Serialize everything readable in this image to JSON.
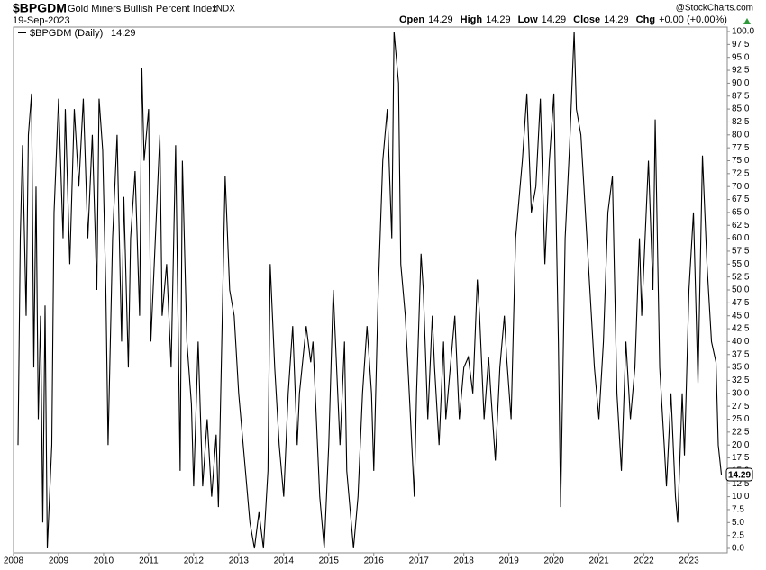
{
  "chart_data": {
    "type": "line",
    "title": "$BPGDM",
    "subtitle": "Gold Miners Bullish Percent Index",
    "exchange": "INDX",
    "date": "19-Sep-2023",
    "watermark": "@StockCharts.com",
    "quote": [
      {
        "label": "Open",
        "value": 14.29
      },
      {
        "label": "High",
        "value": 14.29
      },
      {
        "label": "Low",
        "value": 14.29
      },
      {
        "label": "Close",
        "value": 14.29
      },
      {
        "label": "Chg",
        "value": "+0.00 (+0.00%)"
      }
    ],
    "x": [
      2008.1,
      2008.15,
      2008.2,
      2008.28,
      2008.33,
      2008.4,
      2008.45,
      2008.5,
      2008.55,
      2008.6,
      2008.65,
      2008.7,
      2008.75,
      2008.85,
      2008.9,
      2009.0,
      2009.1,
      2009.15,
      2009.25,
      2009.35,
      2009.45,
      2009.55,
      2009.65,
      2009.75,
      2009.85,
      2009.9,
      2009.98,
      2010.05,
      2010.1,
      2010.2,
      2010.3,
      2010.4,
      2010.45,
      2010.55,
      2010.6,
      2010.7,
      2010.8,
      2010.85,
      2010.9,
      2011.0,
      2011.05,
      2011.15,
      2011.25,
      2011.3,
      2011.4,
      2011.5,
      2011.6,
      2011.7,
      2011.75,
      2011.85,
      2011.95,
      2012.0,
      2012.1,
      2012.2,
      2012.3,
      2012.4,
      2012.5,
      2012.55,
      2012.7,
      2012.8,
      2012.9,
      2013.0,
      2013.1,
      2013.25,
      2013.35,
      2013.45,
      2013.55,
      2013.65,
      2013.7,
      2013.8,
      2013.9,
      2014.0,
      2014.1,
      2014.2,
      2014.3,
      2014.35,
      2014.5,
      2014.6,
      2014.65,
      2014.7,
      2014.8,
      2014.9,
      2015.0,
      2015.1,
      2015.15,
      2015.25,
      2015.35,
      2015.4,
      2015.55,
      2015.65,
      2015.75,
      2015.85,
      2015.95,
      2016.0,
      2016.1,
      2016.2,
      2016.3,
      2016.4,
      2016.45,
      2016.55,
      2016.6,
      2016.7,
      2016.8,
      2016.9,
      2016.95,
      2017.05,
      2017.1,
      2017.2,
      2017.3,
      2017.35,
      2017.45,
      2017.55,
      2017.6,
      2017.7,
      2017.8,
      2017.9,
      2018.0,
      2018.1,
      2018.2,
      2018.3,
      2018.35,
      2018.45,
      2018.55,
      2018.6,
      2018.7,
      2018.8,
      2018.9,
      2018.95,
      2019.05,
      2019.15,
      2019.3,
      2019.4,
      2019.5,
      2019.6,
      2019.7,
      2019.8,
      2019.9,
      2020.0,
      2020.1,
      2020.15,
      2020.25,
      2020.35,
      2020.45,
      2020.5,
      2020.6,
      2020.7,
      2020.8,
      2020.9,
      2021.0,
      2021.1,
      2021.2,
      2021.3,
      2021.4,
      2021.5,
      2021.6,
      2021.7,
      2021.8,
      2021.9,
      2021.95,
      2022.1,
      2022.2,
      2022.25,
      2022.35,
      2022.45,
      2022.5,
      2022.6,
      2022.7,
      2022.75,
      2022.85,
      2022.9,
      2023.0,
      2023.1,
      2023.2,
      2023.3,
      2023.4,
      2023.5,
      2023.6,
      2023.65,
      2023.72
    ],
    "series": [
      {
        "name": "$BPGDM (Daily)",
        "color": "#000000",
        "values": [
          20,
          60,
          78,
          45,
          80,
          88,
          35,
          70,
          25,
          45,
          5,
          47,
          0,
          20,
          65,
          87,
          60,
          85,
          55,
          85,
          70,
          87,
          60,
          80,
          50,
          87,
          77,
          50,
          20,
          60,
          80,
          40,
          68,
          35,
          60,
          73,
          45,
          93,
          75,
          85,
          40,
          60,
          80,
          45,
          55,
          35,
          78,
          15,
          75,
          40,
          28,
          12,
          40,
          12,
          25,
          10,
          22,
          8,
          72,
          50,
          45,
          30,
          20,
          5,
          0,
          7,
          0,
          15,
          55,
          35,
          20,
          10,
          30,
          43,
          20,
          30,
          43,
          36,
          40,
          30,
          10,
          0,
          20,
          50,
          40,
          20,
          40,
          15,
          0,
          10,
          30,
          43,
          30,
          15,
          50,
          75,
          85,
          60,
          100,
          90,
          55,
          45,
          28,
          10,
          30,
          57,
          50,
          25,
          45,
          35,
          20,
          40,
          25,
          35,
          45,
          25,
          35,
          37,
          30,
          52,
          45,
          25,
          37,
          30,
          17,
          35,
          45,
          37,
          25,
          60,
          75,
          88,
          65,
          70,
          87,
          55,
          75,
          88,
          40,
          8,
          60,
          78,
          100,
          85,
          80,
          65,
          50,
          35,
          25,
          40,
          65,
          72,
          30,
          15,
          40,
          25,
          35,
          60,
          45,
          75,
          50,
          83,
          35,
          20,
          12,
          30,
          10,
          5,
          30,
          18,
          50,
          65,
          32,
          76,
          55,
          40,
          36,
          20,
          14.29
        ]
      }
    ],
    "xlim": [
      2008,
      2023.85
    ],
    "xticks": [
      2008,
      2009,
      2010,
      2011,
      2012,
      2013,
      2014,
      2015,
      2016,
      2017,
      2018,
      2019,
      2020,
      2021,
      2022,
      2023
    ],
    "ylim": [
      0,
      100
    ],
    "yticks": [
      {
        "value": 0,
        "label": "0.0"
      },
      {
        "value": 2.5,
        "label": "2.5"
      },
      {
        "value": 5,
        "label": "5.0"
      },
      {
        "value": 7.5,
        "label": "7.5"
      },
      {
        "value": 10,
        "label": "10.0"
      },
      {
        "value": 12.5,
        "label": "12.5"
      },
      {
        "value": 15,
        "label": "15.0"
      },
      {
        "value": 17.5,
        "label": "17.5"
      },
      {
        "value": 20,
        "label": "20.0"
      },
      {
        "value": 22.5,
        "label": "22.5"
      },
      {
        "value": 25,
        "label": "25.0"
      },
      {
        "value": 27.5,
        "label": "27.5"
      },
      {
        "value": 30,
        "label": "30.0"
      },
      {
        "value": 32.5,
        "label": "32.5"
      },
      {
        "value": 35,
        "label": "35.0"
      },
      {
        "value": 37.5,
        "label": "37.5"
      },
      {
        "value": 40,
        "label": "40.0"
      },
      {
        "value": 42.5,
        "label": "42.5"
      },
      {
        "value": 45,
        "label": "45.0"
      },
      {
        "value": 47.5,
        "label": "47.5"
      },
      {
        "value": 50,
        "label": "50.0"
      },
      {
        "value": 52.5,
        "label": "52.5"
      },
      {
        "value": 55,
        "label": "55.0"
      },
      {
        "value": 57.5,
        "label": "57.5"
      },
      {
        "value": 60,
        "label": "60.0"
      },
      {
        "value": 62.5,
        "label": "62.5"
      },
      {
        "value": 65,
        "label": "65.0"
      },
      {
        "value": 67.5,
        "label": "67.5"
      },
      {
        "value": 70,
        "label": "70.0"
      },
      {
        "value": 72.5,
        "label": "72.5"
      },
      {
        "value": 75,
        "label": "75.0"
      },
      {
        "value": 77.5,
        "label": "77.5"
      },
      {
        "value": 80,
        "label": "80.0"
      },
      {
        "value": 82.5,
        "label": "82.5"
      },
      {
        "value": 85,
        "label": "85.0"
      },
      {
        "value": 87.5,
        "label": "87.5"
      },
      {
        "value": 90,
        "label": "90.0"
      },
      {
        "value": 92.5,
        "label": "92.5"
      },
      {
        "value": 95,
        "label": "95.0"
      },
      {
        "value": 97.5,
        "label": "97.5"
      },
      {
        "value": 100,
        "label": "100.0"
      }
    ],
    "grid": false
  }
}
